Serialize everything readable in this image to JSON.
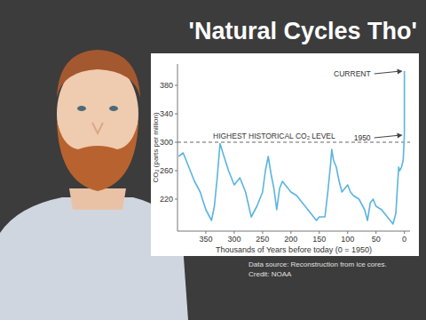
{
  "chart_data": {
    "type": "line",
    "title": "'Natural Cycles Tho'",
    "x_label": "Thousands of Years before today (0 = 1950)",
    "y_label": "CO₂ (parts per million)",
    "x": [
      398,
      390,
      380,
      370,
      360,
      350,
      340,
      335,
      330,
      325,
      320,
      310,
      300,
      290,
      280,
      270,
      260,
      250,
      245,
      240,
      235,
      230,
      225,
      220,
      215,
      210,
      200,
      190,
      180,
      170,
      160,
      155,
      150,
      140,
      135,
      130,
      128,
      125,
      120,
      115,
      110,
      105,
      100,
      95,
      90,
      80,
      70,
      65,
      60,
      55,
      50,
      40,
      30,
      20,
      15,
      12,
      10,
      8,
      5,
      2,
      0,
      -0.067
    ],
    "values": [
      280,
      285,
      265,
      245,
      230,
      205,
      190,
      210,
      250,
      298,
      285,
      260,
      240,
      250,
      230,
      195,
      210,
      230,
      260,
      280,
      255,
      235,
      205,
      235,
      245,
      240,
      230,
      225,
      215,
      205,
      195,
      190,
      195,
      195,
      230,
      270,
      290,
      275,
      265,
      245,
      230,
      235,
      240,
      230,
      225,
      220,
      205,
      190,
      215,
      220,
      210,
      205,
      195,
      185,
      200,
      240,
      265,
      260,
      265,
      275,
      310,
      400
    ],
    "color": "#5ab4e0",
    "xlim": [
      400,
      -10
    ],
    "xticks": [
      350,
      300,
      250,
      200,
      150,
      100,
      50,
      0
    ],
    "ylim": [
      175,
      410
    ],
    "yticks": [
      220,
      260,
      300,
      340,
      380
    ],
    "grid": false,
    "annotations": [
      {
        "text": "HIGHEST HISTORICAL CO₂ LEVEL",
        "y": 300
      },
      {
        "text": "CURRENT",
        "x": -0.067,
        "y": 400
      },
      {
        "text": "1950",
        "x": 0,
        "y": 310
      }
    ],
    "source": [
      "Data source: Reconstruction from ice cores.",
      "Credit: NOAA"
    ]
  }
}
